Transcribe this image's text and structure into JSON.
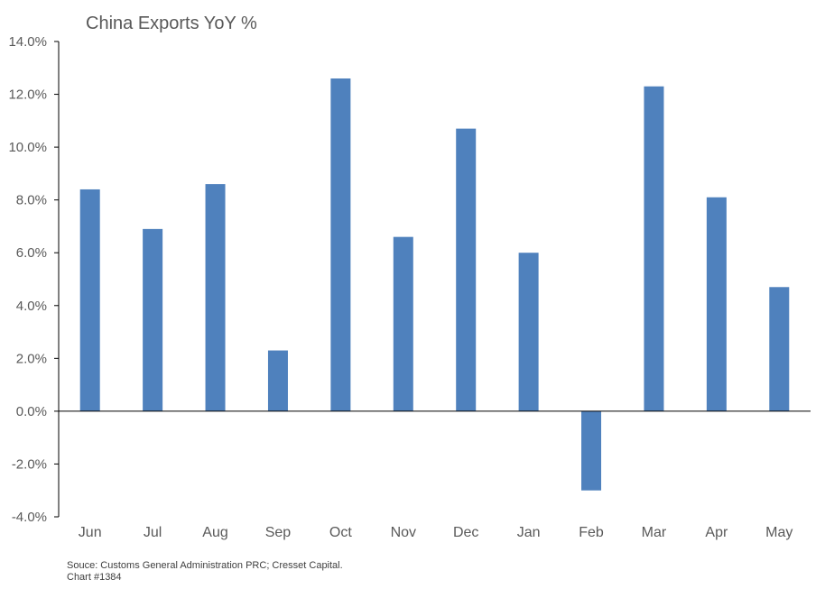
{
  "chart_data": {
    "type": "bar",
    "title": "China Exports YoY %",
    "xlabel": "",
    "ylabel": "",
    "categories": [
      "Jun",
      "Jul",
      "Aug",
      "Sep",
      "Oct",
      "Nov",
      "Dec",
      "Jan",
      "Feb",
      "Mar",
      "Apr",
      "May"
    ],
    "values": [
      8.4,
      6.9,
      8.6,
      2.3,
      12.6,
      6.6,
      10.7,
      6.0,
      -3.0,
      12.3,
      8.1,
      4.7
    ],
    "ylim": [
      -4.0,
      14.0
    ],
    "yticks": [
      -4.0,
      -2.0,
      0.0,
      2.0,
      4.0,
      6.0,
      8.0,
      10.0,
      12.0,
      14.0
    ],
    "ytick_labels": [
      "-4.0%",
      "-2.0%",
      "0.0%",
      "2.0%",
      "4.0%",
      "6.0%",
      "8.0%",
      "10.0%",
      "12.0%",
      "14.0%"
    ],
    "grid": false,
    "legend": "none",
    "bar_color": "#4f81bd",
    "axis_color": "#000000"
  },
  "footer": {
    "source": "Souce: Customs General Administration PRC; Cresset Capital.",
    "chart_number": "Chart #1384"
  }
}
